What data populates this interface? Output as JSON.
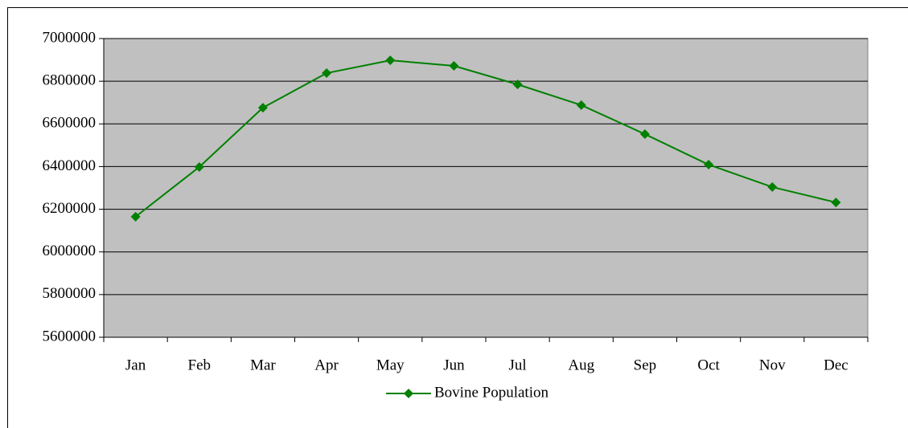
{
  "chart_data": {
    "type": "line",
    "categories": [
      "Jan",
      "Feb",
      "Mar",
      "Apr",
      "May",
      "Jun",
      "Jul",
      "Aug",
      "Sep",
      "Oct",
      "Nov",
      "Dec"
    ],
    "series": [
      {
        "name": "Bovine Population",
        "color": "#008000",
        "values": [
          6165000,
          6398000,
          6676000,
          6838000,
          6898000,
          6872000,
          6785000,
          6688000,
          6552000,
          6409000,
          6304000,
          6232000
        ]
      }
    ],
    "ylim": [
      5600000,
      7000000
    ],
    "yticks": [
      5600000,
      5800000,
      6000000,
      6200000,
      6400000,
      6600000,
      6800000,
      7000000
    ],
    "grid": true,
    "legend": "bottom"
  }
}
